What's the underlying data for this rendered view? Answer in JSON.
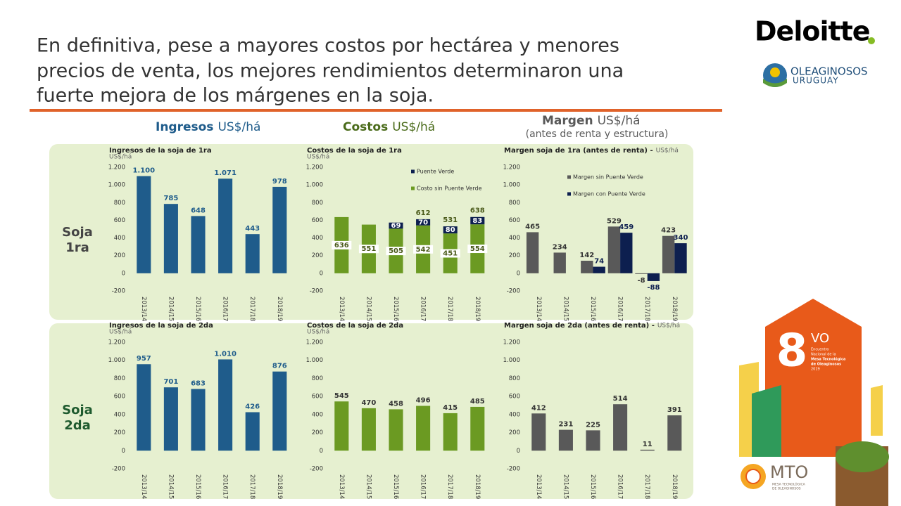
{
  "title_lines": [
    "En definitiva, pese a mayores costos por hectárea y menores",
    "precios de venta, los mejores rendimientos determinaron una",
    "fuerte mejora de los márgenes en la soja."
  ],
  "logos": {
    "deloitte": "Deloitte",
    "oleaginosos": "OLEAGINOSOS",
    "uruguay": "URUGUAY",
    "event_number": "8",
    "event_suffix": "VO",
    "event_text": [
      "Encuentro",
      "Nacional de la",
      "Mesa Tecnológica",
      "de Oleaginosos",
      "2019"
    ],
    "mto": "MTO",
    "mto_text": [
      "MESA TECNOLÓGICA",
      "DE OLEAGINOSOS"
    ]
  },
  "headers": [
    {
      "name": "Ingresos",
      "unit": "US$/há"
    },
    {
      "name": "Costos",
      "unit": "US$/há"
    },
    {
      "name": "Margen",
      "unit": "US$/há",
      "note": "(antes de renta y estructura)"
    }
  ],
  "row_labels": [
    [
      "Soja",
      "1ra"
    ],
    [
      "Soja",
      "2da"
    ]
  ],
  "chart_data": [
    {
      "type": "bar",
      "title": "Ingresos de la soja de 1ra",
      "unit": "US$/há",
      "categories": [
        "2013/14",
        "2014/15",
        "2015/16",
        "2016/17",
        "2017/18",
        "2018/19"
      ],
      "values": [
        1100,
        785,
        648,
        1071,
        443,
        978
      ],
      "value_labels": [
        "1.100",
        "785",
        "648",
        "1.071",
        "443",
        "978"
      ],
      "color": "#1f5c8b",
      "label_color": "#1f5c8b",
      "ylim": [
        -200,
        1200
      ],
      "yticks": [
        {
          "value": 1200,
          "label": "1.200"
        },
        {
          "value": 1000,
          "label": "1.000"
        },
        800,
        600,
        400,
        200,
        0,
        -200
      ]
    },
    {
      "type": "stacked_bar",
      "title": "Costos de la soja de 1ra",
      "unit": "US$/há",
      "categories": [
        "2013/14",
        "2014/15",
        "2015/16",
        "2016/17",
        "2017/18",
        "2018/19"
      ],
      "series": [
        {
          "name": "Costo sin Puente Verde",
          "color": "#6b9a22",
          "values": [
            636,
            551,
            505,
            542,
            451,
            554
          ]
        },
        {
          "name": "Puente Verde",
          "color": "#0d1f4f",
          "values": [
            null,
            null,
            69,
            70,
            80,
            83
          ]
        }
      ],
      "totals": [
        null,
        null,
        null,
        612,
        531,
        638
      ],
      "label_color": "#4a5a1a",
      "legend": "inside-top",
      "ylim": [
        -200,
        1200
      ],
      "yticks": [
        {
          "value": 1200,
          "label": "1.200"
        },
        {
          "value": 1000,
          "label": "1.000"
        },
        800,
        600,
        400,
        200,
        0,
        -200
      ]
    },
    {
      "type": "grouped_bar",
      "title": "Margen soja de 1ra (antes de renta) -",
      "unit": "US$/há",
      "categories": [
        "2013/14",
        "2014/15",
        "2015/16",
        "2016/17",
        "2017/18",
        "2018/19"
      ],
      "series": [
        {
          "name": "Margen sin Puente Verde",
          "color": "#595959",
          "values": [
            465,
            234,
            142,
            529,
            -8,
            423
          ]
        },
        {
          "name": "Margen con Puente Verde",
          "color": "#0d1f4f",
          "values": [
            null,
            null,
            74,
            459,
            -88,
            340
          ]
        }
      ],
      "label_color": "#333333",
      "legend": "inside-top",
      "ylim": [
        -200,
        1200
      ],
      "yticks": [
        {
          "value": 1200,
          "label": "1.200"
        },
        {
          "value": 1000,
          "label": "1.000"
        },
        800,
        600,
        400,
        200,
        0,
        -200
      ]
    },
    {
      "type": "bar",
      "title": "Ingresos de la soja de 2da",
      "unit": "US$/há",
      "categories": [
        "2013/14",
        "2014/15",
        "2015/16",
        "2016/17",
        "2017/18",
        "2018/19"
      ],
      "values": [
        957,
        701,
        683,
        1010,
        426,
        876
      ],
      "value_labels": [
        "957",
        "701",
        "683",
        "1.010",
        "426",
        "876"
      ],
      "color": "#1f5c8b",
      "label_color": "#1f5c8b",
      "ylim": [
        -200,
        1200
      ],
      "yticks": [
        {
          "value": 1200,
          "label": "1.200"
        },
        {
          "value": 1000,
          "label": "1.000"
        },
        800,
        600,
        400,
        200,
        0,
        -200
      ]
    },
    {
      "type": "bar",
      "title": "Costos de la soja de 2da",
      "unit": "US$/há",
      "categories": [
        "2013/14",
        "2014/15",
        "2015/16",
        "2016/17",
        "2017/18",
        "2018/19"
      ],
      "values": [
        545,
        470,
        458,
        496,
        415,
        485
      ],
      "color": "#6b9a22",
      "label_color": "#333333",
      "ylim": [
        -200,
        1200
      ],
      "yticks": [
        {
          "value": 1200,
          "label": "1.200"
        },
        {
          "value": 1000,
          "label": "1.000"
        },
        800,
        600,
        400,
        200,
        0,
        -200
      ]
    },
    {
      "type": "bar",
      "title": "Margen soja de 2da (antes de renta) -",
      "unit": "US$/há",
      "categories": [
        "2013/14",
        "2014/15",
        "2015/16",
        "2016/17",
        "2017/18",
        "2018/19"
      ],
      "values": [
        412,
        231,
        225,
        514,
        11,
        391
      ],
      "color": "#595959",
      "label_color": "#333333",
      "ylim": [
        -200,
        1200
      ],
      "yticks": [
        {
          "value": 1200,
          "label": "1.200"
        },
        {
          "value": 1000,
          "label": "1.000"
        },
        800,
        600,
        400,
        200,
        0,
        -200
      ]
    }
  ]
}
